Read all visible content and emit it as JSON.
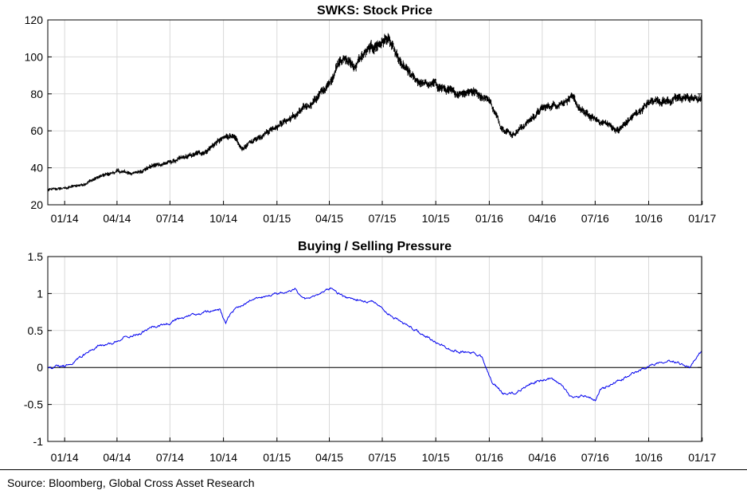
{
  "chart_data": [
    {
      "type": "line",
      "title": "SWKS: Stock Price",
      "xlabel": "",
      "ylabel": "",
      "ylim": [
        20,
        120
      ],
      "yticks": [
        "20",
        "40",
        "60",
        "80",
        "100",
        "120"
      ],
      "xticks": [
        "01/14",
        "04/14",
        "07/14",
        "10/14",
        "01/15",
        "04/15",
        "07/15",
        "10/15",
        "01/16",
        "04/16",
        "07/16",
        "10/16",
        "01/17"
      ],
      "grid": true,
      "series": [
        {
          "color": "#000000",
          "style": "ohlc-bars",
          "x": [
            "2013-12-03",
            "2014-01-02",
            "2014-02-01",
            "2014-03-01",
            "2014-04-01",
            "2014-05-01",
            "2014-06-01",
            "2014-07-01",
            "2014-08-01",
            "2014-09-01",
            "2014-09-20",
            "2014-10-15",
            "2014-11-01",
            "2014-12-01",
            "2015-01-01",
            "2015-02-01",
            "2015-03-01",
            "2015-04-01",
            "2015-04-20",
            "2015-05-15",
            "2015-06-01",
            "2015-06-20",
            "2015-07-10",
            "2015-08-01",
            "2015-08-25",
            "2015-09-15",
            "2015-10-01",
            "2015-11-01",
            "2015-12-01",
            "2016-01-01",
            "2016-01-20",
            "2016-02-10",
            "2016-03-01",
            "2016-04-01",
            "2016-05-01",
            "2016-05-20",
            "2016-06-10",
            "2016-07-01",
            "2016-07-20",
            "2016-08-10",
            "2016-09-01",
            "2016-09-20",
            "2016-10-10",
            "2016-11-01",
            "2016-12-01",
            "2016-12-31"
          ],
          "y": [
            28,
            29,
            31,
            35,
            38,
            37,
            41,
            43,
            46,
            49,
            54,
            58,
            50,
            57,
            63,
            68,
            75,
            85,
            100,
            95,
            102,
            106,
            110,
            96,
            88,
            85,
            85,
            80,
            82,
            77,
            63,
            58,
            63,
            72,
            75,
            78,
            70,
            66,
            64,
            60,
            67,
            72,
            77,
            76,
            78,
            77
          ]
        }
      ]
    },
    {
      "type": "line",
      "title": "Buying / Selling Pressure",
      "xlabel": "",
      "ylabel": "",
      "ylim": [
        -1,
        1.5
      ],
      "yticks": [
        "-1",
        "-0.5",
        "0",
        "0.5",
        "1",
        "1.5"
      ],
      "xticks": [
        "01/14",
        "04/14",
        "07/14",
        "10/14",
        "01/15",
        "04/15",
        "07/15",
        "10/15",
        "01/16",
        "04/16",
        "07/16",
        "10/16",
        "01/17"
      ],
      "grid": true,
      "reference_line": 0,
      "series": [
        {
          "color": "#0000ee",
          "x": [
            "2013-12-03",
            "2014-01-02",
            "2014-01-20",
            "2014-02-10",
            "2014-03-01",
            "2014-03-25",
            "2014-04-15",
            "2014-05-10",
            "2014-06-01",
            "2014-07-01",
            "2014-07-20",
            "2014-08-15",
            "2014-09-05",
            "2014-09-25",
            "2014-10-05",
            "2014-10-15",
            "2014-11-10",
            "2014-12-05",
            "2015-01-01",
            "2015-02-01",
            "2015-02-20",
            "2015-03-15",
            "2015-04-05",
            "2015-04-25",
            "2015-05-20",
            "2015-06-20",
            "2015-07-05",
            "2015-07-25",
            "2015-08-20",
            "2015-09-10",
            "2015-10-05",
            "2015-11-01",
            "2015-12-01",
            "2015-12-20",
            "2016-01-05",
            "2016-01-25",
            "2016-02-15",
            "2016-03-10",
            "2016-04-15",
            "2016-05-05",
            "2016-05-25",
            "2016-06-15",
            "2016-07-01",
            "2016-07-10",
            "2016-08-01",
            "2016-09-01",
            "2016-09-20",
            "2016-10-10",
            "2016-11-01",
            "2016-11-20",
            "2016-12-10",
            "2016-12-31"
          ],
          "y": [
            0.0,
            0.02,
            0.1,
            0.2,
            0.3,
            0.32,
            0.42,
            0.45,
            0.55,
            0.6,
            0.67,
            0.72,
            0.76,
            0.78,
            0.6,
            0.75,
            0.88,
            0.95,
            1.0,
            1.05,
            0.92,
            1.0,
            1.08,
            0.95,
            0.92,
            0.88,
            0.78,
            0.65,
            0.55,
            0.45,
            0.32,
            0.23,
            0.2,
            0.15,
            -0.2,
            -0.35,
            -0.35,
            -0.22,
            -0.15,
            -0.25,
            -0.42,
            -0.38,
            -0.45,
            -0.3,
            -0.22,
            -0.1,
            -0.02,
            0.05,
            0.1,
            0.08,
            0.0,
            0.22
          ]
        }
      ]
    }
  ],
  "footer": {
    "source": "Source: Bloomberg, Global Cross Asset Research"
  }
}
